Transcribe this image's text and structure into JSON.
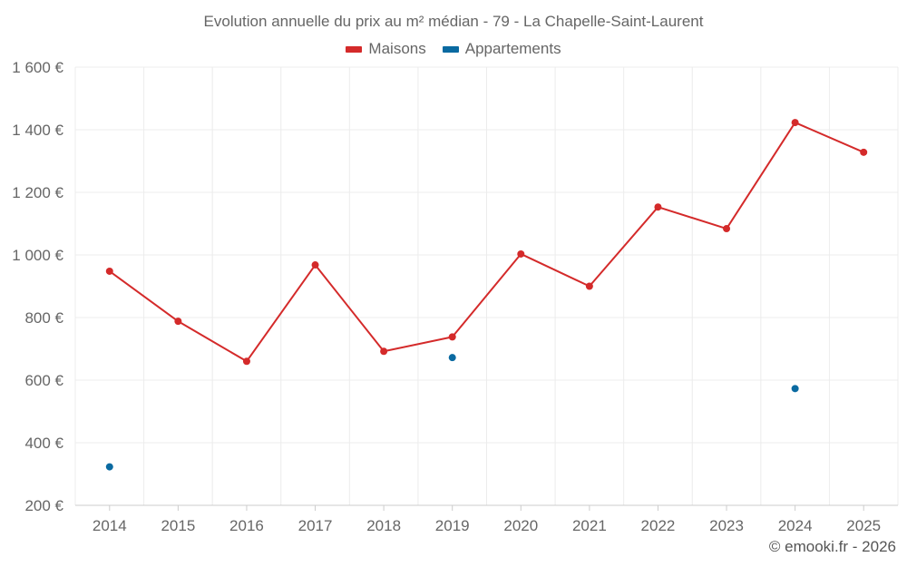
{
  "chart_data": {
    "type": "line",
    "title": "Evolution annuelle du prix au m² médian - 79 - La Chapelle-Saint-Laurent",
    "categories": [
      "2014",
      "2015",
      "2016",
      "2017",
      "2018",
      "2019",
      "2020",
      "2021",
      "2022",
      "2023",
      "2024",
      "2025"
    ],
    "y_ticks": [
      "200 €",
      "400 €",
      "600 €",
      "800 €",
      "1 000 €",
      "1 200 €",
      "1 400 €",
      "1 600 €"
    ],
    "y_tick_values": [
      200,
      400,
      600,
      800,
      1000,
      1200,
      1400,
      1600
    ],
    "ylim": [
      200,
      1600
    ],
    "grid": true,
    "legend_position": "top-center",
    "series": [
      {
        "name": "Maisons",
        "color": "#d42a2a",
        "connected": true,
        "values": [
          948,
          788,
          660,
          968,
          692,
          738,
          1003,
          900,
          1153,
          1084,
          1423,
          1328
        ]
      },
      {
        "name": "Appartements",
        "color": "#0a6aa1",
        "connected": false,
        "values": [
          323,
          null,
          null,
          null,
          null,
          672,
          null,
          null,
          null,
          null,
          573,
          null
        ]
      }
    ]
  },
  "credit": "© emooki.fr - 2026"
}
